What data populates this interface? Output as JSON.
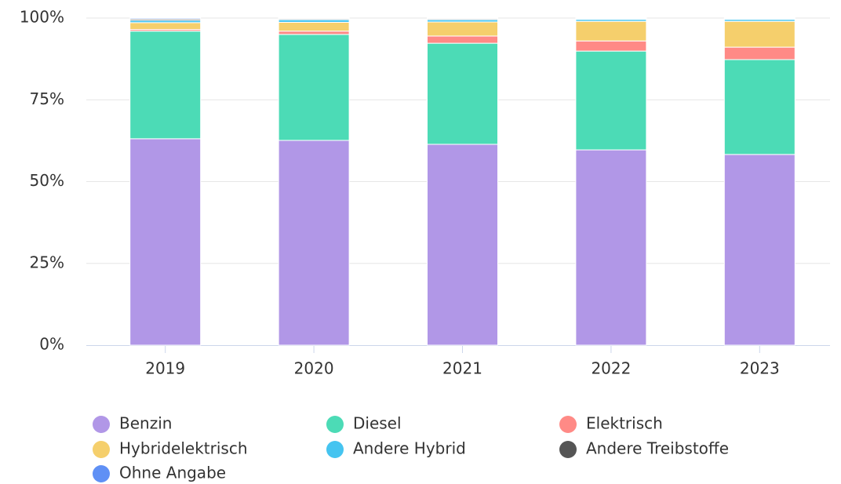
{
  "chart_data": {
    "type": "stacked_bar",
    "categories": [
      "2019",
      "2020",
      "2021",
      "2022",
      "2023"
    ],
    "series": [
      {
        "name": "Benzin",
        "color": "#b197e7",
        "values": [
          63.1,
          62.6,
          61.4,
          59.7,
          58.3
        ]
      },
      {
        "name": "Diesel",
        "color": "#4cdbb6",
        "values": [
          32.9,
          32.4,
          30.9,
          30.2,
          29.0
        ]
      },
      {
        "name": "Elektrisch",
        "color": "#ff8a86",
        "values": [
          0.5,
          1.0,
          2.2,
          3.1,
          3.8
        ]
      },
      {
        "name": "Hybridelektrisch",
        "color": "#f5cf6c",
        "values": [
          2.1,
          2.7,
          4.3,
          6.0,
          7.9
        ]
      },
      {
        "name": "Andere Hybrid",
        "color": "#45c4f0",
        "values": [
          0.7,
          0.8,
          0.7,
          0.6,
          0.6
        ]
      },
      {
        "name": "Andere Treibstoffe",
        "color": "#555555",
        "values": [
          0.4,
          0.3,
          0.3,
          0.2,
          0.2
        ]
      },
      {
        "name": "Ohne Angabe",
        "color": "#5f90f5",
        "values": [
          0.3,
          0.2,
          0.2,
          0.2,
          0.2
        ]
      }
    ],
    "ylim": [
      0,
      100
    ],
    "yticks": [
      {
        "value": 0,
        "label": "0%"
      },
      {
        "value": 25,
        "label": "25%"
      },
      {
        "value": 50,
        "label": "50%"
      },
      {
        "value": 75,
        "label": "75%"
      },
      {
        "value": 100,
        "label": "100%"
      }
    ],
    "grid": true
  }
}
